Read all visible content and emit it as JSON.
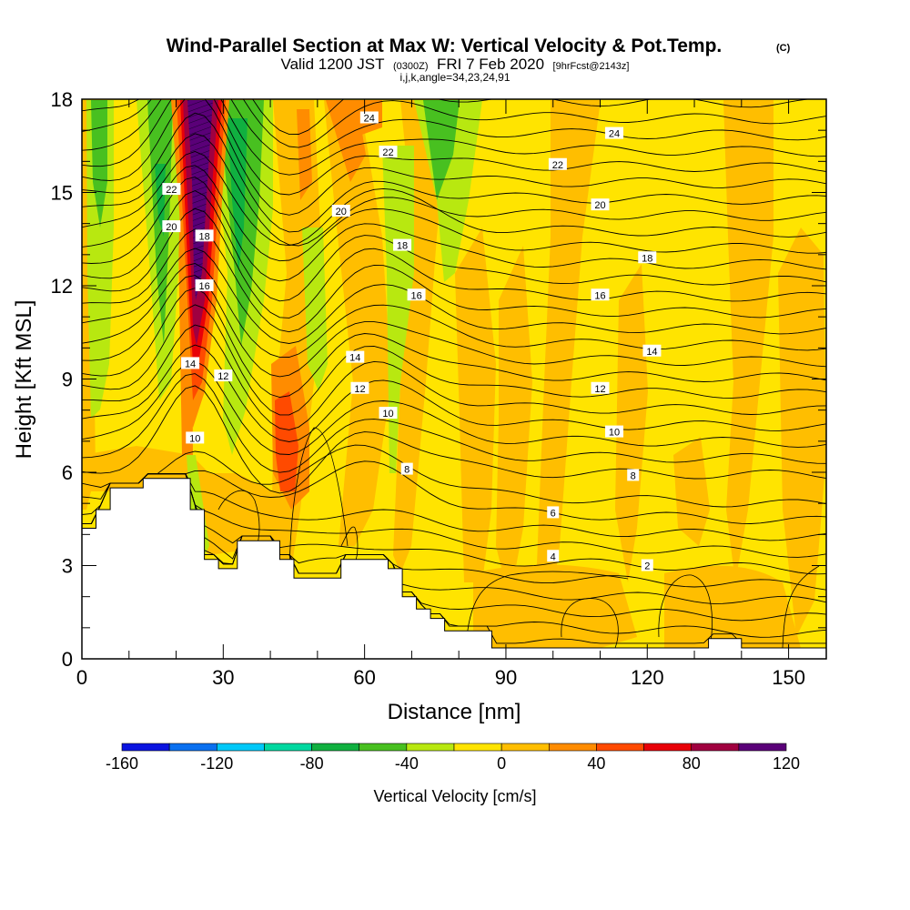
{
  "titles": {
    "main": "Wind-Parallel Section at Max W: Vertical Velocity & Pot.Temp.",
    "copyright": "(C)",
    "valid_prefix": "Valid 1200 JST",
    "valid_utc": "(0300Z)",
    "valid_date": "FRI 7 Feb 2020",
    "forecast": "[9hrFcst@2143z]",
    "indices": "i,j,k,angle=34,23,24,91"
  },
  "chart_data": {
    "type": "heatmap",
    "xlabel": "Distance [nm]",
    "ylabel": "Height [Kft MSL]",
    "xlim": [
      0,
      158
    ],
    "ylim": [
      0,
      18
    ],
    "xticks": [
      0,
      30,
      60,
      90,
      120,
      150
    ],
    "yticks": [
      0,
      3,
      6,
      9,
      12,
      15,
      18
    ],
    "colorbar": {
      "label": "Vertical Velocity [cm/s]",
      "ticks": [
        -160,
        -120,
        -80,
        -40,
        0,
        40,
        80,
        120
      ],
      "levels": [
        -160,
        -140,
        -120,
        -100,
        -80,
        -60,
        -40,
        -20,
        0,
        20,
        40,
        60,
        80,
        100,
        120
      ],
      "colors": [
        "#0a14e0",
        "#0a70f0",
        "#00c8f8",
        "#00d8a0",
        "#10b040",
        "#48c020",
        "#b8e810",
        "#ffe400",
        "#ffbe00",
        "#ff8c00",
        "#ff4a00",
        "#e80008",
        "#a00040",
        "#5a0078"
      ]
    },
    "terrain": [
      [
        0,
        4.2
      ],
      [
        3,
        4.2
      ],
      [
        3,
        4.8
      ],
      [
        6,
        4.8
      ],
      [
        6,
        5.5
      ],
      [
        13,
        5.5
      ],
      [
        13,
        5.8
      ],
      [
        23,
        5.8
      ],
      [
        23,
        4.8
      ],
      [
        26,
        4.8
      ],
      [
        26,
        3.2
      ],
      [
        29,
        3.2
      ],
      [
        29,
        2.9
      ],
      [
        33,
        2.9
      ],
      [
        33,
        3.8
      ],
      [
        42,
        3.8
      ],
      [
        42,
        3.2
      ],
      [
        45,
        3.2
      ],
      [
        45,
        2.6
      ],
      [
        55,
        2.6
      ],
      [
        55,
        3.2
      ],
      [
        65,
        3.2
      ],
      [
        65,
        2.9
      ],
      [
        68,
        2.9
      ],
      [
        68,
        2.0
      ],
      [
        71,
        2.0
      ],
      [
        71,
        1.6
      ],
      [
        74,
        1.6
      ],
      [
        74,
        1.3
      ],
      [
        77,
        1.3
      ],
      [
        77,
        0.9
      ],
      [
        87,
        0.9
      ],
      [
        87,
        0.35
      ],
      [
        133,
        0.35
      ],
      [
        133,
        0.65
      ],
      [
        140,
        0.65
      ],
      [
        140,
        0.35
      ],
      [
        158,
        0.35
      ]
    ],
    "contour_labels": [
      {
        "text": "24",
        "x": 61,
        "y": 17.4
      },
      {
        "text": "22",
        "x": 65,
        "y": 16.3
      },
      {
        "text": "20",
        "x": 55,
        "y": 14.4
      },
      {
        "text": "18",
        "x": 68,
        "y": 13.3
      },
      {
        "text": "16",
        "x": 71,
        "y": 11.7
      },
      {
        "text": "14",
        "x": 58,
        "y": 9.7
      },
      {
        "text": "12",
        "x": 59,
        "y": 8.7
      },
      {
        "text": "10",
        "x": 65,
        "y": 7.9
      },
      {
        "text": "8",
        "x": 69,
        "y": 6.1
      },
      {
        "text": "22",
        "x": 19,
        "y": 15.1
      },
      {
        "text": "20",
        "x": 19,
        "y": 13.9
      },
      {
        "text": "18",
        "x": 26,
        "y": 13.6
      },
      {
        "text": "16",
        "x": 26,
        "y": 12.0
      },
      {
        "text": "14",
        "x": 23,
        "y": 9.5
      },
      {
        "text": "12",
        "x": 30,
        "y": 9.1
      },
      {
        "text": "10",
        "x": 24,
        "y": 7.1
      },
      {
        "text": "24",
        "x": 113,
        "y": 16.9
      },
      {
        "text": "22",
        "x": 101,
        "y": 15.9
      },
      {
        "text": "20",
        "x": 110,
        "y": 14.6
      },
      {
        "text": "18",
        "x": 120,
        "y": 12.9
      },
      {
        "text": "16",
        "x": 110,
        "y": 11.7
      },
      {
        "text": "14",
        "x": 121,
        "y": 9.9
      },
      {
        "text": "12",
        "x": 110,
        "y": 8.7
      },
      {
        "text": "10",
        "x": 113,
        "y": 7.3
      },
      {
        "text": "8",
        "x": 117,
        "y": 5.9
      },
      {
        "text": "6",
        "x": 100,
        "y": 4.7
      },
      {
        "text": "4",
        "x": 100,
        "y": 3.3
      },
      {
        "text": "2",
        "x": 120,
        "y": 3.0
      }
    ]
  }
}
